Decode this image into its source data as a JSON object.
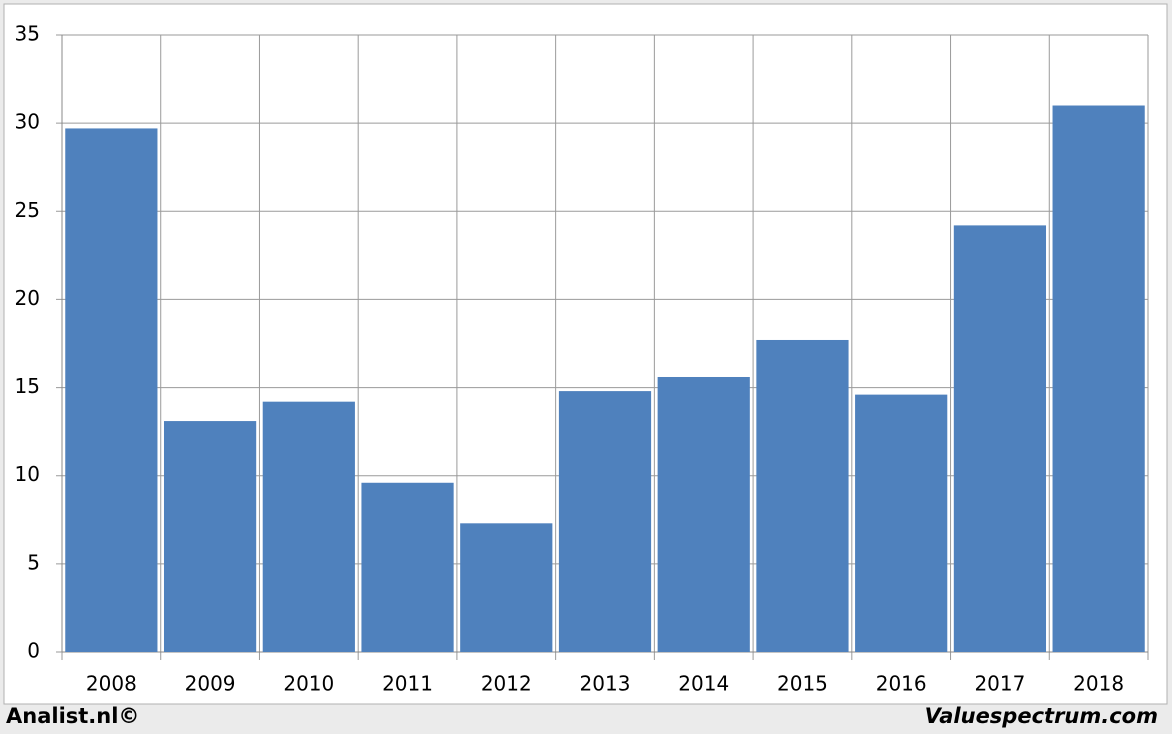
{
  "chart_data": {
    "type": "bar",
    "categories": [
      "2008",
      "2009",
      "2010",
      "2011",
      "2012",
      "2013",
      "2014",
      "2015",
      "2016",
      "2017",
      "2018"
    ],
    "values": [
      29.7,
      13.1,
      14.2,
      9.6,
      7.3,
      14.8,
      15.6,
      17.7,
      14.6,
      24.2,
      31.0
    ],
    "color": "#4f81bd",
    "ylim": [
      0,
      35
    ],
    "yticks": [
      0,
      5,
      10,
      15,
      20,
      25,
      30,
      35
    ],
    "grid": true,
    "footer_left": "Analist.nl©",
    "footer_right": "Valuespectrum.com"
  }
}
